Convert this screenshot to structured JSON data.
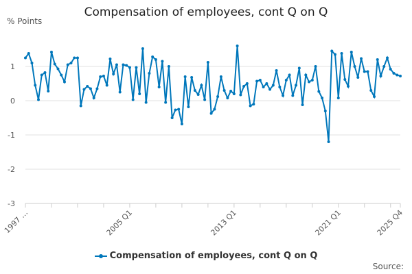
{
  "chart_data": {
    "type": "line",
    "title": "Compensation of employees, cont Q on Q",
    "ylabel": "% Points",
    "xlabel": "",
    "ylim": [
      -3,
      2
    ],
    "yticks": [
      -3,
      -2,
      -1,
      0,
      1
    ],
    "xtick_labels": [
      "1997 …",
      "2005 Q1",
      "2013 Q1",
      "2021 Q1",
      "2025 Q4"
    ],
    "grid": true,
    "legend_position": "bottom",
    "start": "1997 Q1",
    "end": "2025 Q4",
    "series": [
      {
        "name": "Compensation of employees, cont Q on Q",
        "color": "#0077bb",
        "values": [
          1.25,
          1.38,
          1.1,
          0.45,
          0.03,
          0.75,
          0.82,
          0.28,
          1.42,
          1.07,
          0.93,
          0.75,
          0.55,
          1.05,
          1.1,
          1.25,
          1.25,
          -0.15,
          0.33,
          0.42,
          0.35,
          0.08,
          0.35,
          0.7,
          0.72,
          0.45,
          1.22,
          0.78,
          1.05,
          0.25,
          1.05,
          1.03,
          0.97,
          0.03,
          0.97,
          0.2,
          1.52,
          -0.05,
          0.8,
          1.28,
          1.2,
          0.4,
          1.15,
          -0.05,
          1.0,
          -0.5,
          -0.27,
          -0.25,
          -0.68,
          0.7,
          -0.18,
          0.68,
          0.3,
          0.18,
          0.45,
          0.03,
          1.12,
          -0.37,
          -0.25,
          0.12,
          0.7,
          0.3,
          0.08,
          0.28,
          0.2,
          1.6,
          0.17,
          0.42,
          0.5,
          -0.15,
          -0.1,
          0.57,
          0.6,
          0.4,
          0.5,
          0.33,
          0.45,
          0.88,
          0.4,
          0.15,
          0.6,
          0.75,
          0.15,
          0.45,
          0.95,
          -0.12,
          0.75,
          0.55,
          0.6,
          1.0,
          0.27,
          0.08,
          -0.3,
          -1.2,
          1.45,
          1.35,
          0.08,
          1.38,
          0.62,
          0.42,
          1.42,
          1.0,
          0.68,
          1.23,
          0.85,
          0.85,
          0.3,
          0.12,
          1.2,
          0.72,
          1.0,
          1.25,
          0.92,
          0.8,
          0.75,
          0.72
        ]
      }
    ]
  },
  "source_label": "Source:"
}
